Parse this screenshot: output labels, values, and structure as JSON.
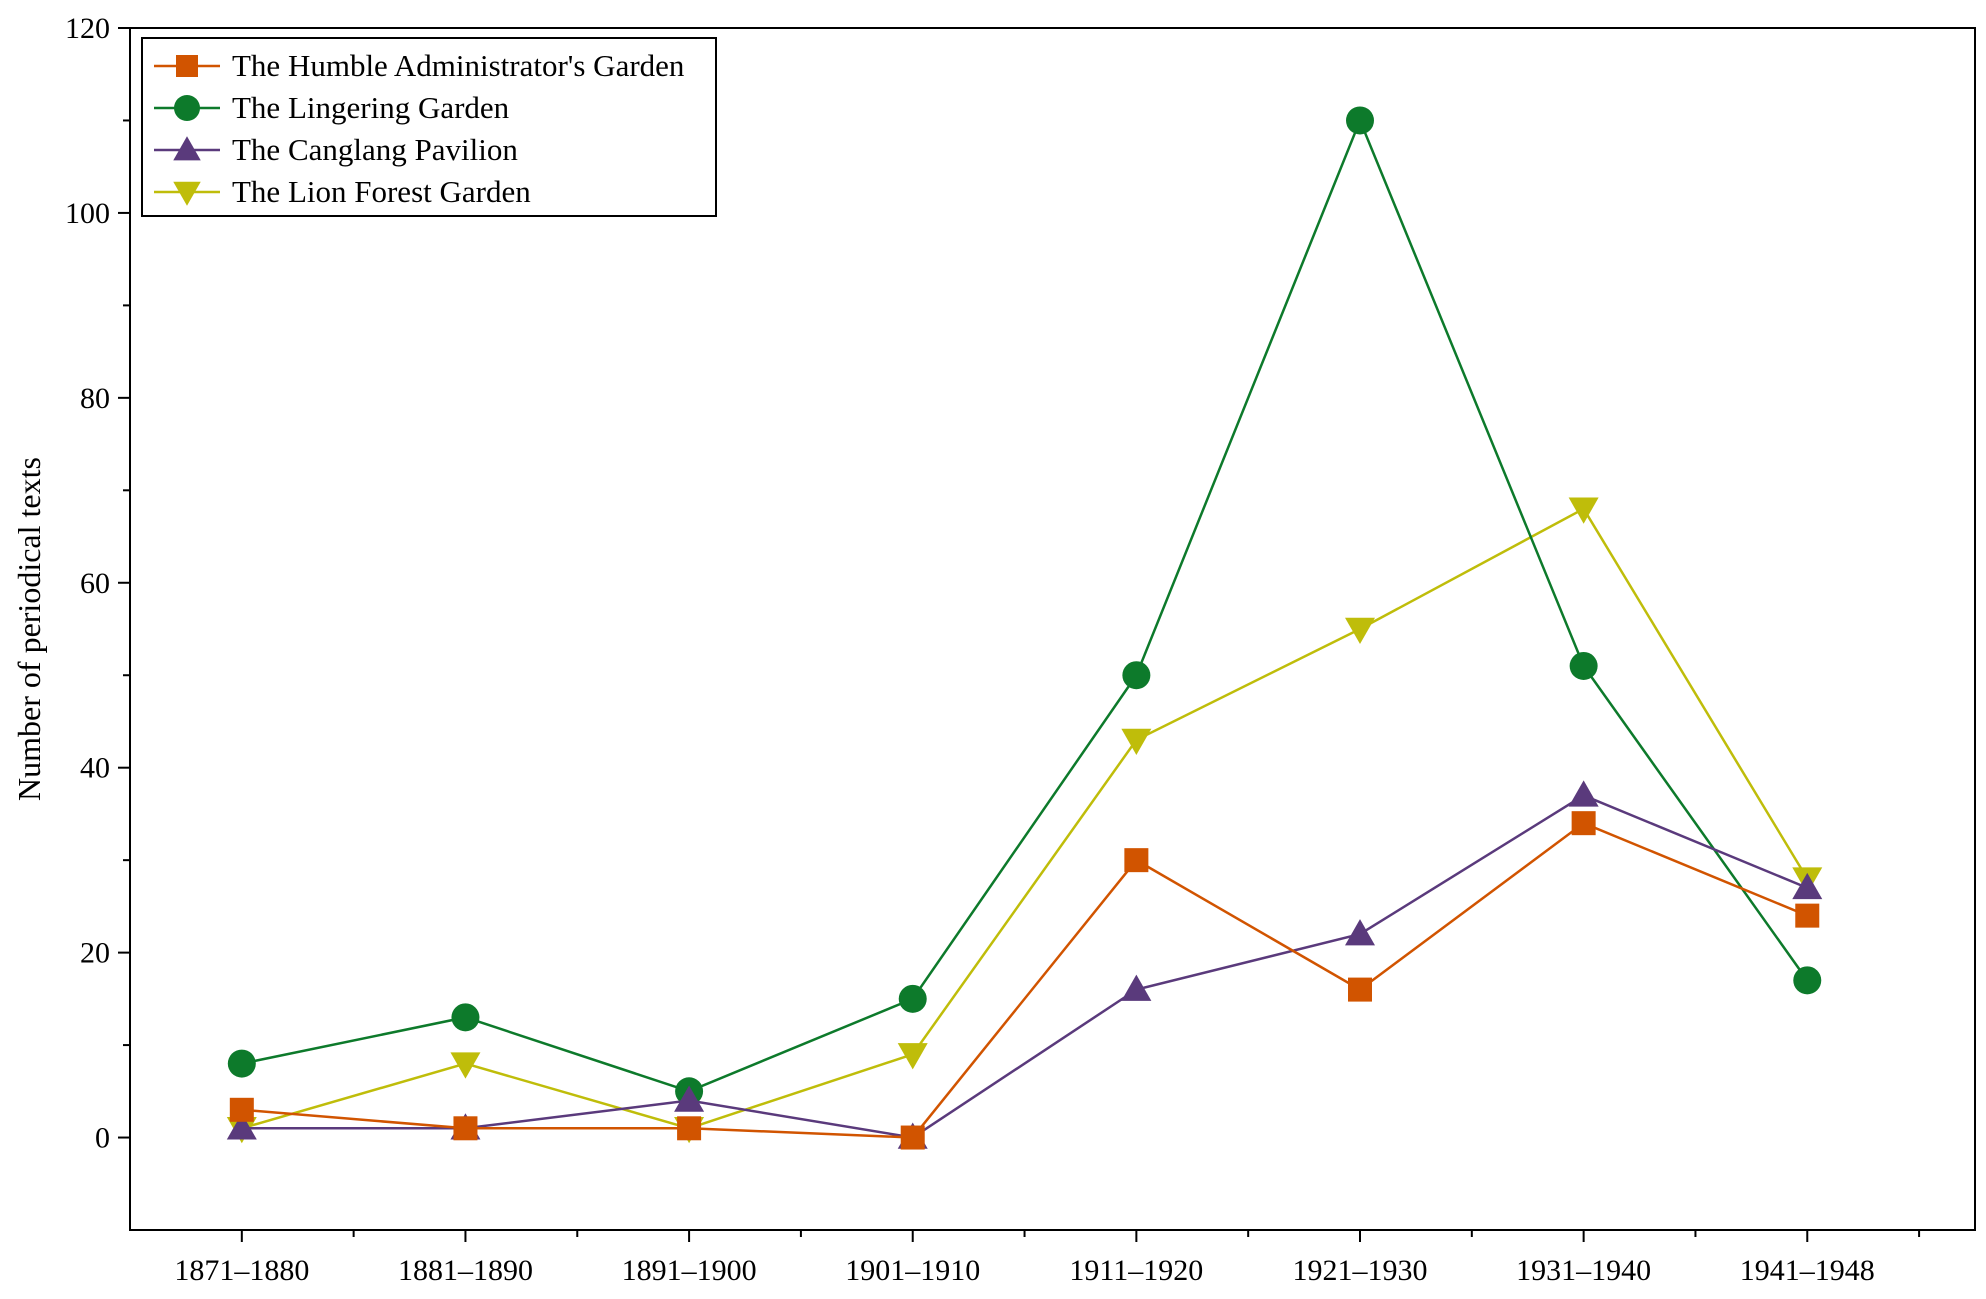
{
  "chart_data": {
    "type": "line",
    "title": "",
    "xlabel": "",
    "ylabel": "Number of periodical texts",
    "categories": [
      "1871–1880",
      "1881–1890",
      "1891–1900",
      "1901–1910",
      "1911–1920",
      "1921–1930",
      "1931–1940",
      "1941–1948"
    ],
    "ylim": [
      -10,
      120
    ],
    "yticks": [
      0,
      20,
      40,
      60,
      80,
      100,
      120
    ],
    "grid": false,
    "legend_position": "top-left",
    "series": [
      {
        "name": "The Humble Administrator's Garden",
        "marker": "square",
        "color": "#d15400",
        "values": [
          3,
          1,
          1,
          0,
          30,
          16,
          34,
          24
        ]
      },
      {
        "name": "The Lingering Garden",
        "marker": "circle",
        "color": "#0d7a2b",
        "values": [
          8,
          13,
          5,
          15,
          50,
          110,
          51,
          17
        ]
      },
      {
        "name": "The Canglang Pavilion",
        "marker": "triangle-up",
        "color": "#5a3a7c",
        "values": [
          1,
          1,
          4,
          0,
          16,
          22,
          37,
          27
        ]
      },
      {
        "name": "The Lion Forest Garden",
        "marker": "triangle-down",
        "color": "#bfbd0a",
        "values": [
          1,
          8,
          1,
          9,
          43,
          55,
          68,
          28
        ]
      }
    ]
  }
}
